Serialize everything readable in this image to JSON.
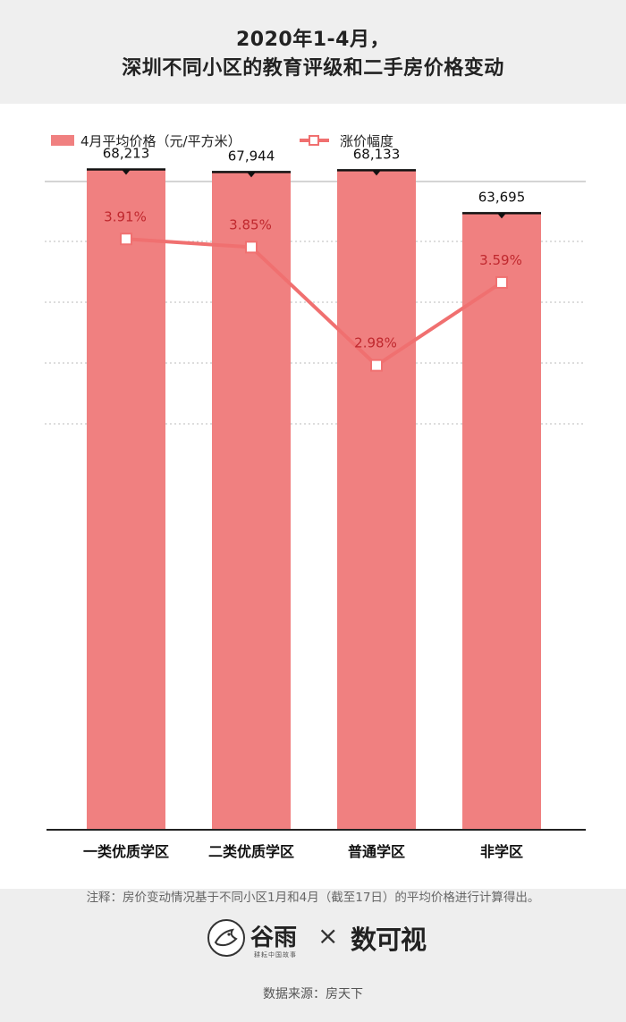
{
  "title": {
    "line1": "2020年1-4月，",
    "line2": "深圳不同小区的教育评级和二手房价格变动"
  },
  "chart_data": {
    "type": "bar",
    "categories": [
      "一类优质学区",
      "二类优质学区",
      "普通学区",
      "非学区"
    ],
    "series": [
      {
        "name": "4月平均价格（元/平方米）",
        "type": "bar",
        "values": [
          68213,
          67944,
          68133,
          63695
        ],
        "labels": [
          "68,213",
          "67,944",
          "68,133",
          "63,695"
        ],
        "color": "#f08080"
      },
      {
        "name": "涨价幅度",
        "type": "line",
        "values": [
          3.91,
          3.85,
          2.98,
          3.59
        ],
        "labels": [
          "3.91%",
          "3.85%",
          "2.98%",
          "3.59%"
        ],
        "color": "#f07070"
      }
    ],
    "bar_axis_range": [
      0,
      75000
    ],
    "line_axis_range": [
      2.55,
      4.3
    ],
    "legend_position": "top-left",
    "grid": true
  },
  "note": "注释：房价变动情况基于不同小区1月和4月（截至17日）的平均价格进行计算得出。",
  "logos": {
    "guyu_name": "谷雨",
    "guyu_tagline": "耕耘中国故事",
    "times": "×",
    "partner": "数可视"
  },
  "source": "数据来源：房天下",
  "colors": {
    "bar": "#f08080",
    "bar_track": "#f0f0f0",
    "line": "#f07070",
    "line_label": "#c0282e",
    "baseline": "#111111"
  }
}
